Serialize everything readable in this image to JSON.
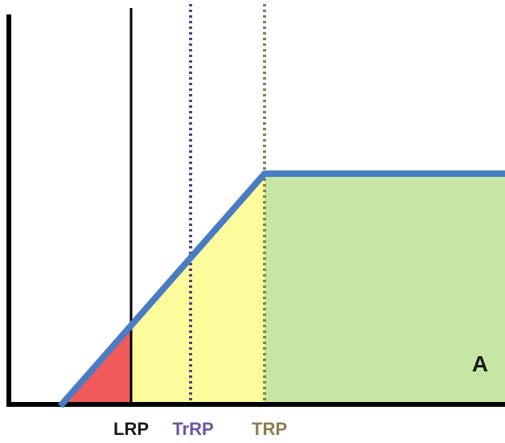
{
  "labels": {
    "lrp": "LRP",
    "trrp": "TrRP",
    "trp": "TRP",
    "region_a": "A"
  },
  "colors": {
    "axis": "#000000",
    "curve": "#4a7cc3",
    "region_red": "#f05a5a",
    "region_yellow": "#fcfc9c",
    "region_green": "#c7e6a3",
    "lrp_line": "#000000",
    "trrp_line": "#5b3f86",
    "trp_line": "#8b7d4f",
    "lrp_text": "#1a1a1a",
    "trrp_text": "#6d55a0",
    "trp_text": "#8b7d4f",
    "a_text": "#1a1a1a"
  }
}
